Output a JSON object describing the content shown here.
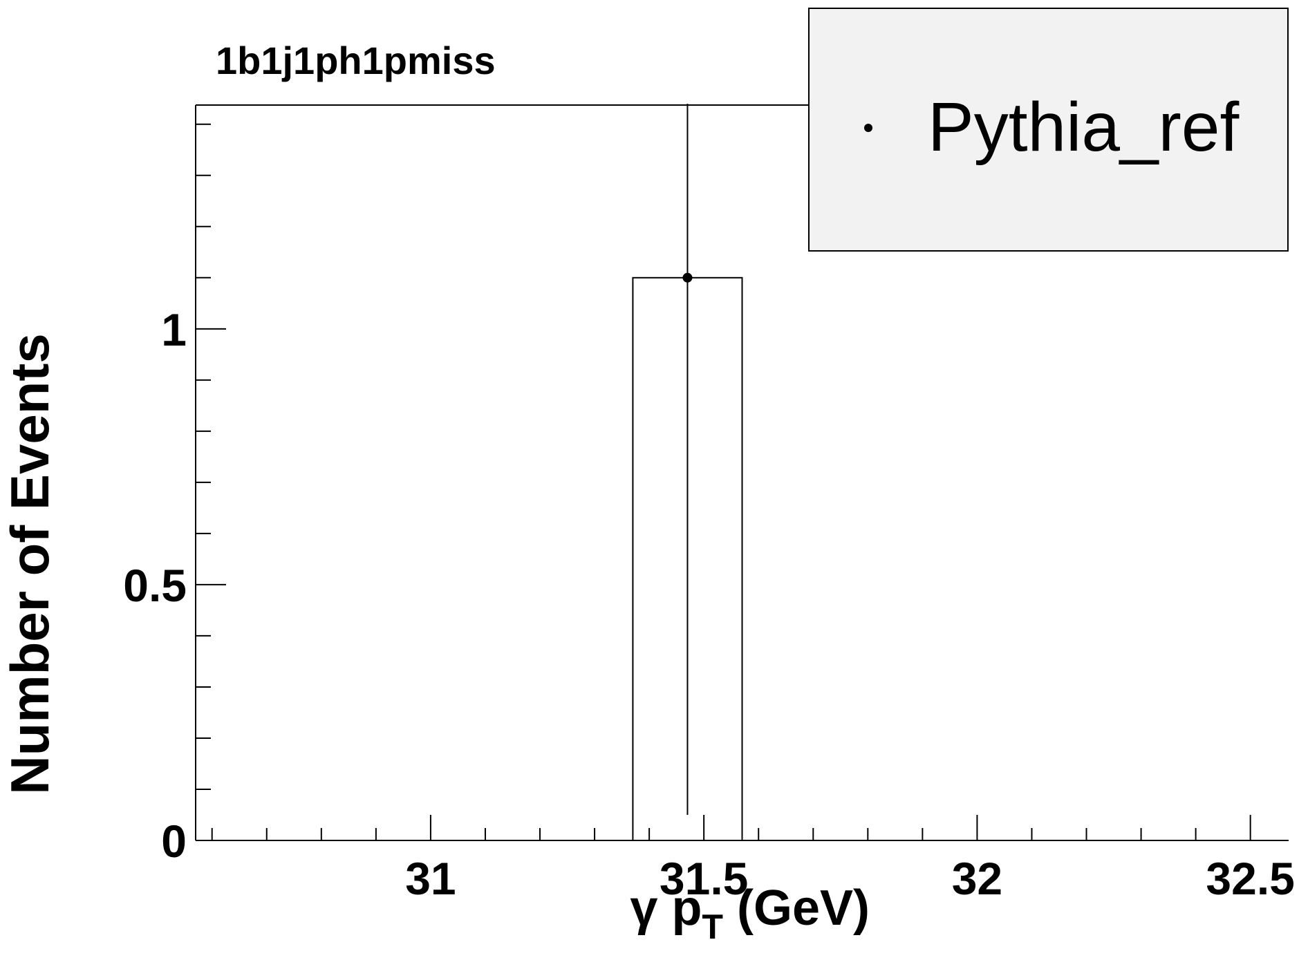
{
  "chart_data": {
    "type": "bar",
    "title": "1b1j1ph1pmiss",
    "xlabel": {
      "prefix": "γ p",
      "subscript": "T",
      "suffix": " (GeV)"
    },
    "ylabel": "Number of Events",
    "xlim": [
      30.57,
      32.57
    ],
    "ylim": [
      0,
      1.4375
    ],
    "x_ticks": [
      {
        "value": 31,
        "label": "31"
      },
      {
        "value": 31.5,
        "label": "31.5"
      },
      {
        "value": 32,
        "label": "32"
      },
      {
        "value": 32.5,
        "label": "32.5"
      }
    ],
    "x_minor_step": 0.1,
    "y_ticks": [
      {
        "value": 0,
        "label": "0"
      },
      {
        "value": 0.5,
        "label": "0.5"
      },
      {
        "value": 1,
        "label": "1"
      }
    ],
    "y_minor_step": 0.1,
    "bins": [
      {
        "low": 31.37,
        "high": 31.57,
        "value": 1.1
      }
    ],
    "series": [
      {
        "name": "Pythia_ref",
        "points": [
          {
            "x": 31.47,
            "y": 1.1,
            "err_low": 1.05,
            "err_high": 0.34
          }
        ]
      }
    ],
    "legend": {
      "position": "top-right",
      "entries": [
        "Pythia_ref"
      ]
    },
    "grid": false,
    "colors": {
      "line": "#000000",
      "legend_bg": "#f2f2f2",
      "background": "#ffffff"
    }
  }
}
